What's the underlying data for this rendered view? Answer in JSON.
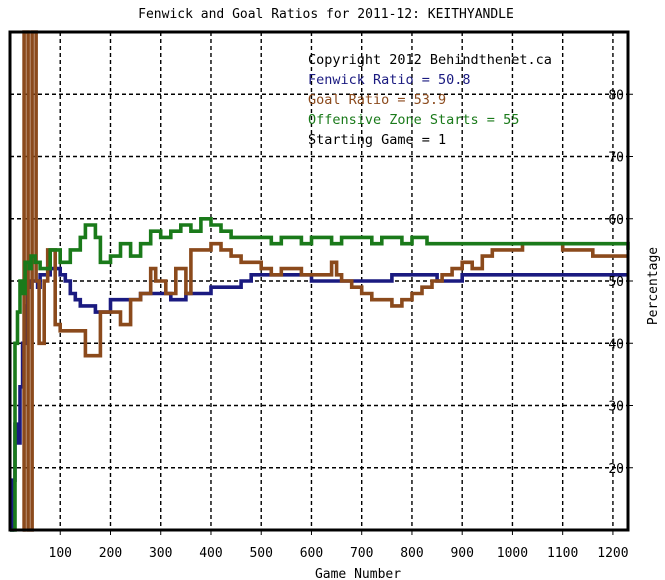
{
  "chart_data": {
    "type": "line",
    "title": "Fenwick and Goal Ratios for 2011-12: KEITHYANDLE",
    "xlabel": "Game Number",
    "ylabel": "Percentage",
    "xlim": [
      0,
      1230
    ],
    "ylim": [
      10,
      90
    ],
    "x_ticks": [
      100,
      200,
      300,
      400,
      500,
      600,
      700,
      800,
      900,
      1000,
      1100,
      1200
    ],
    "y_ticks": [
      20,
      30,
      40,
      50,
      60,
      70,
      80
    ],
    "grid": true,
    "annotations": [
      {
        "text": "Copyright 2012 Behindthenet.ca",
        "color": "#000000"
      },
      {
        "text": "Fenwick Ratio = 50.8",
        "color": "#1a1a80"
      },
      {
        "text": "Goal Ratio = 53.9",
        "color": "#8b4a1c"
      },
      {
        "text": "Offensive Zone Starts = 55",
        "color": "#1a7a1a"
      },
      {
        "text": "Starting Game = 1",
        "color": "#000000"
      }
    ],
    "series": [
      {
        "name": "Fenwick Ratio",
        "color": "#1a1a80",
        "points": [
          [
            0,
            10
          ],
          [
            5,
            18
          ],
          [
            10,
            27
          ],
          [
            15,
            24
          ],
          [
            20,
            33
          ],
          [
            25,
            40
          ],
          [
            30,
            46
          ],
          [
            35,
            49
          ],
          [
            40,
            50
          ],
          [
            50,
            50
          ],
          [
            55,
            49
          ],
          [
            60,
            51
          ],
          [
            70,
            51
          ],
          [
            80,
            52
          ],
          [
            100,
            51
          ],
          [
            110,
            50
          ],
          [
            120,
            48
          ],
          [
            130,
            47
          ],
          [
            140,
            46
          ],
          [
            160,
            46
          ],
          [
            170,
            45
          ],
          [
            200,
            47
          ],
          [
            230,
            47
          ],
          [
            260,
            48
          ],
          [
            290,
            48
          ],
          [
            320,
            47
          ],
          [
            350,
            48
          ],
          [
            380,
            48
          ],
          [
            400,
            49
          ],
          [
            430,
            49
          ],
          [
            460,
            50
          ],
          [
            480,
            51
          ],
          [
            520,
            51
          ],
          [
            560,
            51
          ],
          [
            600,
            50
          ],
          [
            650,
            50
          ],
          [
            700,
            50
          ],
          [
            730,
            50
          ],
          [
            760,
            51
          ],
          [
            800,
            51
          ],
          [
            850,
            50
          ],
          [
            900,
            51
          ],
          [
            950,
            51
          ],
          [
            1000,
            51
          ],
          [
            1050,
            51
          ],
          [
            1100,
            51
          ],
          [
            1150,
            51
          ],
          [
            1200,
            51
          ],
          [
            1230,
            51
          ]
        ]
      },
      {
        "name": "Goal Ratio",
        "color": "#8b4a1c",
        "points": [
          [
            25,
            10
          ],
          [
            28,
            90
          ],
          [
            32,
            90
          ],
          [
            36,
            10
          ],
          [
            42,
            10
          ],
          [
            44,
            90
          ],
          [
            48,
            90
          ],
          [
            52,
            50
          ],
          [
            58,
            40
          ],
          [
            62,
            40
          ],
          [
            68,
            50
          ],
          [
            75,
            55
          ],
          [
            80,
            55
          ],
          [
            90,
            43
          ],
          [
            100,
            42
          ],
          [
            140,
            42
          ],
          [
            150,
            38
          ],
          [
            170,
            38
          ],
          [
            180,
            45
          ],
          [
            200,
            45
          ],
          [
            220,
            43
          ],
          [
            240,
            47
          ],
          [
            260,
            48
          ],
          [
            280,
            52
          ],
          [
            290,
            50
          ],
          [
            300,
            50
          ],
          [
            310,
            48
          ],
          [
            320,
            48
          ],
          [
            330,
            52
          ],
          [
            340,
            52
          ],
          [
            350,
            48
          ],
          [
            360,
            55
          ],
          [
            380,
            55
          ],
          [
            400,
            56
          ],
          [
            420,
            55
          ],
          [
            440,
            54
          ],
          [
            460,
            53
          ],
          [
            480,
            53
          ],
          [
            500,
            52
          ],
          [
            520,
            51
          ],
          [
            540,
            52
          ],
          [
            560,
            52
          ],
          [
            580,
            51
          ],
          [
            600,
            51
          ],
          [
            620,
            51
          ],
          [
            640,
            53
          ],
          [
            650,
            51
          ],
          [
            660,
            50
          ],
          [
            680,
            49
          ],
          [
            700,
            48
          ],
          [
            720,
            47
          ],
          [
            740,
            47
          ],
          [
            760,
            46
          ],
          [
            780,
            47
          ],
          [
            800,
            48
          ],
          [
            820,
            49
          ],
          [
            840,
            50
          ],
          [
            860,
            51
          ],
          [
            880,
            52
          ],
          [
            900,
            53
          ],
          [
            920,
            52
          ],
          [
            940,
            54
          ],
          [
            960,
            55
          ],
          [
            980,
            55
          ],
          [
            1000,
            55
          ],
          [
            1020,
            56
          ],
          [
            1050,
            56
          ],
          [
            1080,
            56
          ],
          [
            1100,
            55
          ],
          [
            1130,
            55
          ],
          [
            1160,
            54
          ],
          [
            1200,
            54
          ],
          [
            1230,
            54
          ]
        ]
      },
      {
        "name": "Offensive Zone Starts",
        "color": "#1a7a1a",
        "points": [
          [
            0,
            10
          ],
          [
            5,
            10
          ],
          [
            10,
            40
          ],
          [
            15,
            45
          ],
          [
            20,
            50
          ],
          [
            25,
            48
          ],
          [
            30,
            53
          ],
          [
            38,
            52
          ],
          [
            42,
            54
          ],
          [
            50,
            53
          ],
          [
            60,
            52
          ],
          [
            80,
            55
          ],
          [
            100,
            53
          ],
          [
            120,
            55
          ],
          [
            140,
            57
          ],
          [
            150,
            59
          ],
          [
            160,
            59
          ],
          [
            170,
            57
          ],
          [
            180,
            53
          ],
          [
            200,
            54
          ],
          [
            220,
            56
          ],
          [
            240,
            54
          ],
          [
            260,
            56
          ],
          [
            280,
            58
          ],
          [
            300,
            57
          ],
          [
            320,
            58
          ],
          [
            340,
            59
          ],
          [
            360,
            58
          ],
          [
            380,
            60
          ],
          [
            400,
            59
          ],
          [
            420,
            58
          ],
          [
            440,
            57
          ],
          [
            460,
            57
          ],
          [
            480,
            57
          ],
          [
            500,
            57
          ],
          [
            520,
            56
          ],
          [
            540,
            57
          ],
          [
            560,
            57
          ],
          [
            580,
            56
          ],
          [
            600,
            57
          ],
          [
            620,
            57
          ],
          [
            640,
            56
          ],
          [
            660,
            57
          ],
          [
            680,
            57
          ],
          [
            700,
            57
          ],
          [
            720,
            56
          ],
          [
            740,
            57
          ],
          [
            760,
            57
          ],
          [
            780,
            56
          ],
          [
            800,
            57
          ],
          [
            830,
            56
          ],
          [
            860,
            56
          ],
          [
            900,
            56
          ],
          [
            940,
            56
          ],
          [
            980,
            56
          ],
          [
            1000,
            56
          ],
          [
            1020,
            56
          ],
          [
            1050,
            56
          ],
          [
            1080,
            56
          ],
          [
            1100,
            56
          ],
          [
            1130,
            56
          ],
          [
            1160,
            56
          ],
          [
            1190,
            56
          ],
          [
            1210,
            56
          ],
          [
            1230,
            55
          ]
        ]
      }
    ]
  }
}
